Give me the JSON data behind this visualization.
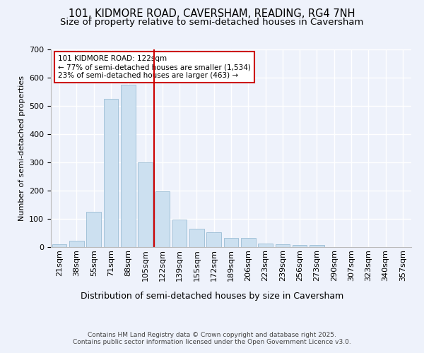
{
  "title": "101, KIDMORE ROAD, CAVERSHAM, READING, RG4 7NH",
  "subtitle": "Size of property relative to semi-detached houses in Caversham",
  "xlabel": "Distribution of semi-detached houses by size in Caversham",
  "ylabel": "Number of semi-detached properties",
  "categories": [
    "21sqm",
    "38sqm",
    "55sqm",
    "71sqm",
    "88sqm",
    "105sqm",
    "122sqm",
    "139sqm",
    "155sqm",
    "172sqm",
    "189sqm",
    "206sqm",
    "223sqm",
    "239sqm",
    "256sqm",
    "273sqm",
    "290sqm",
    "307sqm",
    "323sqm",
    "340sqm",
    "357sqm"
  ],
  "values": [
    10,
    22,
    125,
    525,
    575,
    300,
    197,
    97,
    65,
    52,
    32,
    32,
    13,
    11,
    8,
    7,
    0,
    0,
    0,
    0,
    0
  ],
  "bar_color": "#cce0f0",
  "bar_edge_color": "#9abcd4",
  "property_line_index": 6,
  "property_line_color": "#cc0000",
  "annotation_text": "101 KIDMORE ROAD: 122sqm\n← 77% of semi-detached houses are smaller (1,534)\n23% of semi-detached houses are larger (463) →",
  "annotation_box_color": "#ffffff",
  "annotation_box_edge": "#cc0000",
  "footer_text": "Contains HM Land Registry data © Crown copyright and database right 2025.\nContains public sector information licensed under the Open Government Licence v3.0.",
  "ylim": [
    0,
    700
  ],
  "background_color": "#eef2fb",
  "plot_background": "#eef2fb",
  "grid_color": "#ffffff",
  "title_fontsize": 10.5,
  "subtitle_fontsize": 9.5,
  "xlabel_fontsize": 9,
  "ylabel_fontsize": 8,
  "tick_fontsize": 8,
  "footer_fontsize": 6.5
}
